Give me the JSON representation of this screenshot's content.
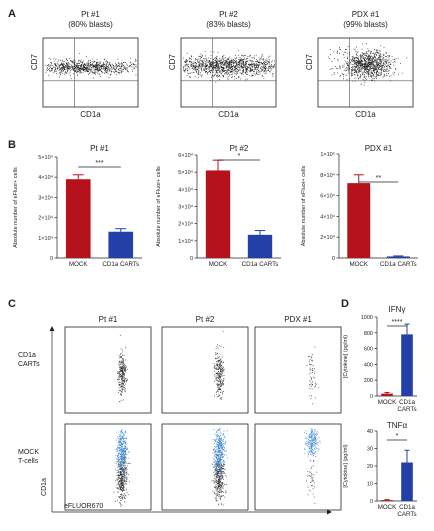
{
  "figure": {
    "panels": {
      "A": {
        "letter": "A",
        "plots": [
          {
            "name": "Pt #1",
            "blasts": "(80% blasts)",
            "ylabel": "CD7",
            "xlabel": "CD1a"
          },
          {
            "name": "Pt #2",
            "blasts": "(83% blasts)",
            "ylabel": "CD7",
            "xlabel": "CD1a"
          },
          {
            "name": "PDX #1",
            "blasts": "(99% blasts)",
            "ylabel": "CD7",
            "xlabel": "CD1a"
          }
        ]
      },
      "B": {
        "letter": "B"
      },
      "C": {
        "letter": "C",
        "columns": [
          "Pt #1",
          "Pt #2",
          "PDX #1"
        ],
        "rows": [
          "CD1a\nCARTs",
          "MOCK\nT-cells"
        ],
        "ylabel": "CD1a",
        "xlabel": "eFLUOR670"
      },
      "D": {
        "letter": "D"
      }
    },
    "colors": {
      "mock": "#b5121b",
      "cart": "#2340a8",
      "dots": "#222222",
      "blue_dots": "#4a90d9"
    }
  },
  "chart_data": [
    {
      "type": "bar",
      "title": "Pt #1",
      "ylabel": "Absolute number of eFluor+ cells",
      "categories": [
        "MOCK",
        "CD1a CARTs"
      ],
      "values": [
        39000,
        13000
      ],
      "errors": [
        2200,
        1500
      ],
      "ylim": [
        0,
        50000
      ],
      "yticks": [
        0,
        10000,
        20000,
        30000,
        40000,
        50000
      ],
      "ytick_labels": [
        "0",
        "1×10⁴",
        "2×10⁴",
        "3×10⁴",
        "4×10⁴",
        "5×10⁴"
      ],
      "significance": "***"
    },
    {
      "type": "bar",
      "title": "Pt #2",
      "ylabel": "Absolute number of eFluor+ cells",
      "categories": [
        "MOCK",
        "CD1a CARTs"
      ],
      "values": [
        51000,
        13500
      ],
      "errors": [
        6000,
        2500
      ],
      "ylim": [
        0,
        60000
      ],
      "yticks": [
        0,
        10000,
        20000,
        30000,
        40000,
        50000,
        60000
      ],
      "ytick_labels": [
        "0",
        "1×10⁴",
        "2×10⁴",
        "3×10⁴",
        "4×10⁴",
        "5×10⁴",
        "6×10⁴"
      ],
      "significance": "*"
    },
    {
      "type": "bar",
      "title": "PDX #1",
      "ylabel": "Absolute number of eFluor+ cells",
      "categories": [
        "MOCK",
        "CD1a CARTs"
      ],
      "values": [
        72000,
        1500
      ],
      "errors": [
        8000,
        500
      ],
      "ylim": [
        0,
        100000
      ],
      "yticks": [
        0,
        20000,
        40000,
        60000,
        80000,
        100000
      ],
      "ytick_labels": [
        "0",
        "2×10⁴",
        "4×10⁴",
        "6×10⁴",
        "8×10⁴",
        "1×10⁵"
      ],
      "significance": "**"
    },
    {
      "type": "bar",
      "title": "IFNγ",
      "ylabel": "[Cytokine] (pg/ml)",
      "categories": [
        "MOCK",
        "CD1a\nCARTs"
      ],
      "values": [
        30,
        780
      ],
      "errors": [
        15,
        130
      ],
      "ylim": [
        0,
        1000
      ],
      "yticks": [
        0,
        200,
        400,
        600,
        800,
        1000
      ],
      "ytick_labels": [
        "0",
        "200",
        "400",
        "600",
        "800",
        "1000"
      ],
      "significance": "****"
    },
    {
      "type": "bar",
      "title": "TNFα",
      "ylabel": "[Cytokine] (pg/ml)",
      "categories": [
        "MOCK",
        "CD1a\nCARTs"
      ],
      "values": [
        0.5,
        22
      ],
      "errors": [
        0.3,
        7
      ],
      "ylim": [
        0,
        40
      ],
      "yticks": [
        0,
        10,
        20,
        30,
        40
      ],
      "ytick_labels": [
        "0",
        "10",
        "20",
        "30",
        "40"
      ],
      "significance": "*"
    }
  ]
}
